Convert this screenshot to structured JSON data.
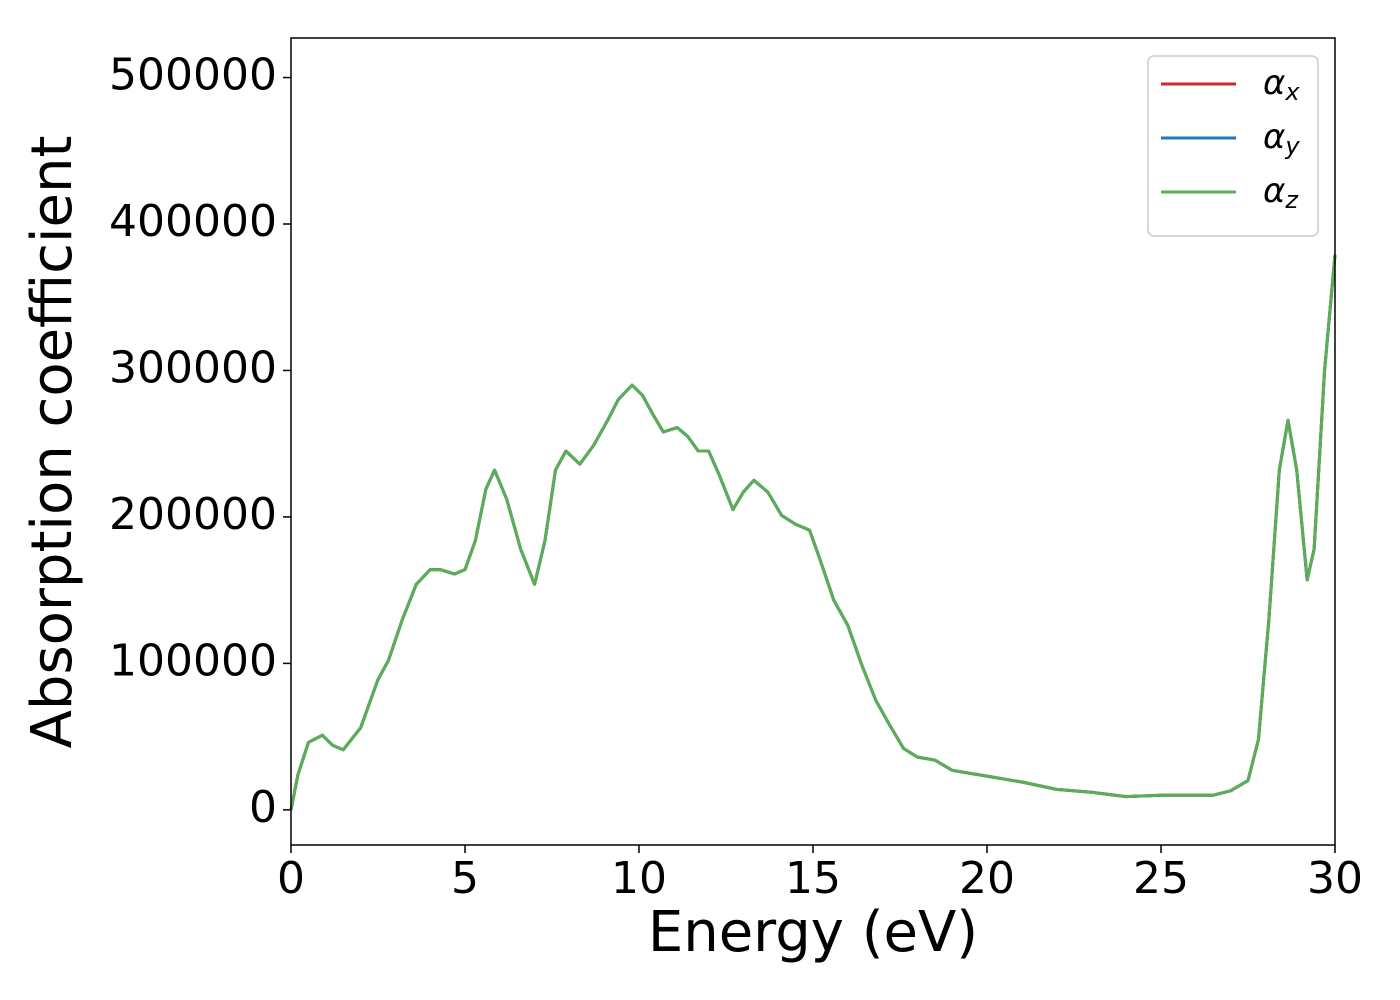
{
  "chart_data": {
    "type": "line",
    "xlabel": "Energy (eV)",
    "ylabel": "Absorption coefficient",
    "x": [
      0,
      0.2,
      0.5,
      0.9,
      1.2,
      1.5,
      2.0,
      2.5,
      2.8,
      3.2,
      3.6,
      4.0,
      4.3,
      4.7,
      5.0,
      5.3,
      5.6,
      5.85,
      6.2,
      6.6,
      7.0,
      7.3,
      7.6,
      7.9,
      8.3,
      8.7,
      9.1,
      9.4,
      9.8,
      10.1,
      10.4,
      10.7,
      11.1,
      11.4,
      11.7,
      12.0,
      12.3,
      12.7,
      13.0,
      13.3,
      13.7,
      14.1,
      14.5,
      14.9,
      15.2,
      15.6,
      16.0,
      16.4,
      16.8,
      17.2,
      17.6,
      18.0,
      18.5,
      19.0,
      19.5,
      20.0,
      21.0,
      22.0,
      23.0,
      24.0,
      25.0,
      26.0,
      26.5,
      27.0,
      27.5,
      27.8,
      28.1,
      28.4,
      28.65,
      28.9,
      29.2,
      29.4,
      29.7,
      30.0
    ],
    "series": [
      {
        "name": "αx",
        "color": "#d62728",
        "values": [
          0,
          24000,
          46000,
          51000,
          44000,
          41000,
          56000,
          89000,
          102000,
          130000,
          154000,
          164000,
          164000,
          161000,
          164000,
          184000,
          219000,
          232000,
          212000,
          178000,
          154000,
          184000,
          232000,
          245000,
          236000,
          249000,
          266000,
          280000,
          290000,
          283000,
          270000,
          258000,
          261000,
          255000,
          245000,
          245000,
          229000,
          205000,
          217000,
          225000,
          217000,
          201000,
          195000,
          191000,
          171000,
          143000,
          126000,
          99000,
          75000,
          58000,
          42000,
          36000,
          34000,
          27000,
          25000,
          23000,
          19000,
          14000,
          12000,
          9000,
          10000,
          10000,
          10000,
          13000,
          20000,
          48000,
          130000,
          232000,
          266000,
          232000,
          157000,
          178000,
          300000,
          379000
        ]
      },
      {
        "name": "αy",
        "color": "#1f77b4",
        "values": [
          0,
          24000,
          46000,
          51000,
          44000,
          41000,
          56000,
          89000,
          102000,
          130000,
          154000,
          164000,
          164000,
          161000,
          164000,
          184000,
          219000,
          232000,
          212000,
          178000,
          154000,
          184000,
          232000,
          245000,
          236000,
          249000,
          266000,
          280000,
          290000,
          283000,
          270000,
          258000,
          261000,
          255000,
          245000,
          245000,
          229000,
          205000,
          217000,
          225000,
          217000,
          201000,
          195000,
          191000,
          171000,
          143000,
          126000,
          99000,
          75000,
          58000,
          42000,
          36000,
          34000,
          27000,
          25000,
          23000,
          19000,
          14000,
          12000,
          9000,
          10000,
          10000,
          10000,
          13000,
          20000,
          48000,
          130000,
          232000,
          266000,
          232000,
          157000,
          178000,
          300000,
          379000
        ]
      },
      {
        "name": "αz",
        "color": "#5aae55",
        "values": [
          0,
          24000,
          46000,
          51000,
          44000,
          41000,
          56000,
          89000,
          102000,
          130000,
          154000,
          164000,
          164000,
          161000,
          164000,
          184000,
          219000,
          232000,
          212000,
          178000,
          154000,
          184000,
          232000,
          245000,
          236000,
          249000,
          266000,
          280000,
          290000,
          283000,
          270000,
          258000,
          261000,
          255000,
          245000,
          245000,
          229000,
          205000,
          217000,
          225000,
          217000,
          201000,
          195000,
          191000,
          171000,
          143000,
          126000,
          99000,
          75000,
          58000,
          42000,
          36000,
          34000,
          27000,
          25000,
          23000,
          19000,
          14000,
          12000,
          9000,
          10000,
          10000,
          10000,
          13000,
          20000,
          48000,
          130000,
          232000,
          266000,
          232000,
          157000,
          178000,
          300000,
          379000
        ]
      }
    ],
    "xlim": [
      0,
      30
    ],
    "xticks": [
      0,
      5,
      10,
      15,
      20,
      25,
      30
    ],
    "ylim": [
      -24000,
      527000
    ],
    "yticks": [
      0,
      100000,
      200000,
      300000,
      400000,
      500000
    ],
    "grid": false,
    "legend": "upper right"
  }
}
